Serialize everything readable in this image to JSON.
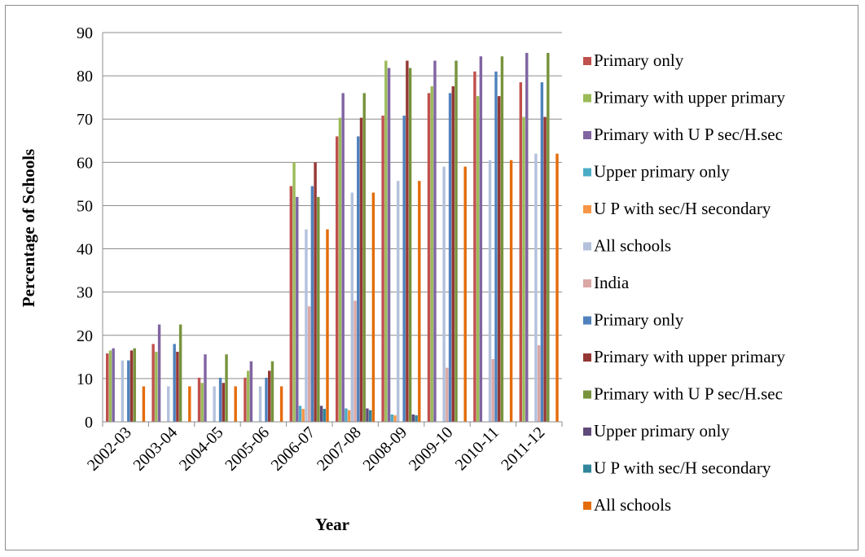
{
  "chart_data": {
    "type": "bar",
    "title": "",
    "xlabel": "Year",
    "ylabel": "Percentage of Schools",
    "ylim": [
      0,
      90
    ],
    "yticks": [
      0,
      10,
      20,
      30,
      40,
      50,
      60,
      70,
      80,
      90
    ],
    "grid": "horizontal",
    "legend_position": "right",
    "categories": [
      "2002-03",
      "2003-04",
      "2004-05",
      "2005-06",
      "2006-07",
      "2007-08",
      "2008-09",
      "2009-10",
      "2010-11",
      "2011-12"
    ],
    "series": [
      {
        "name": "Primary only",
        "color": "#c0504d",
        "values": [
          15.8,
          18.0,
          10.2,
          10.2,
          54.5,
          66.0,
          70.8,
          76.0,
          81.0,
          78.5
        ]
      },
      {
        "name": "Primary with upper primary",
        "color": "#9bbb59",
        "values": [
          16.5,
          16.2,
          9.0,
          11.8,
          60.0,
          70.3,
          83.5,
          77.6,
          75.3,
          70.5
        ]
      },
      {
        "name": "Primary with U P sec/H.sec",
        "color": "#8064a2",
        "values": [
          17.0,
          22.5,
          15.6,
          14.0,
          52.0,
          76.0,
          81.8,
          83.5,
          84.5,
          85.3
        ]
      },
      {
        "name": "Upper primary  only",
        "color": "#4bacc6",
        "values": [
          0,
          0,
          0,
          0,
          3.7,
          3.1,
          1.7,
          0,
          0,
          0
        ]
      },
      {
        "name": "U P with sec/H secondary",
        "color": "#f79646",
        "values": [
          0,
          0,
          0,
          0,
          3.0,
          2.7,
          1.5,
          0,
          0,
          0
        ]
      },
      {
        "name": "All schools",
        "color": "#b3c1dc",
        "values": [
          14.2,
          8.2,
          8.2,
          8.2,
          44.5,
          53.0,
          55.7,
          59.0,
          60.5,
          62.0
        ]
      },
      {
        "name": " India",
        "color": "#dba8a6",
        "values": [
          0,
          0,
          0,
          0,
          26.7,
          28.0,
          0,
          12.5,
          14.5,
          17.7
        ]
      },
      {
        "name": "Primary only",
        "color": "#4f81bd",
        "values": [
          14.2,
          18.0,
          10.2,
          10.2,
          54.5,
          66.0,
          70.8,
          76.0,
          81.0,
          78.5
        ]
      },
      {
        "name": "Primary with upper primary",
        "color": "#953734",
        "values": [
          16.5,
          16.2,
          9.0,
          11.8,
          60.0,
          70.3,
          83.5,
          77.6,
          75.3,
          70.5
        ]
      },
      {
        "name": "Primary with U P sec/H.sec",
        "color": "#77933c",
        "values": [
          17.0,
          22.5,
          15.6,
          14.0,
          52.0,
          76.0,
          81.8,
          83.5,
          84.5,
          85.3
        ]
      },
      {
        "name": "Upper primary  only",
        "color": "#604a7b",
        "values": [
          0,
          0,
          0,
          0,
          3.7,
          3.1,
          1.7,
          0,
          0,
          0
        ]
      },
      {
        "name": "U P with sec/H secondary",
        "color": "#31859c",
        "values": [
          0,
          0,
          0,
          0,
          3.0,
          2.7,
          1.5,
          0,
          0,
          0
        ]
      },
      {
        "name": "All schools",
        "color": "#e46c0a",
        "values": [
          8.2,
          8.2,
          8.2,
          8.2,
          44.5,
          53.0,
          55.7,
          59.0,
          60.5,
          62.0
        ]
      }
    ]
  }
}
